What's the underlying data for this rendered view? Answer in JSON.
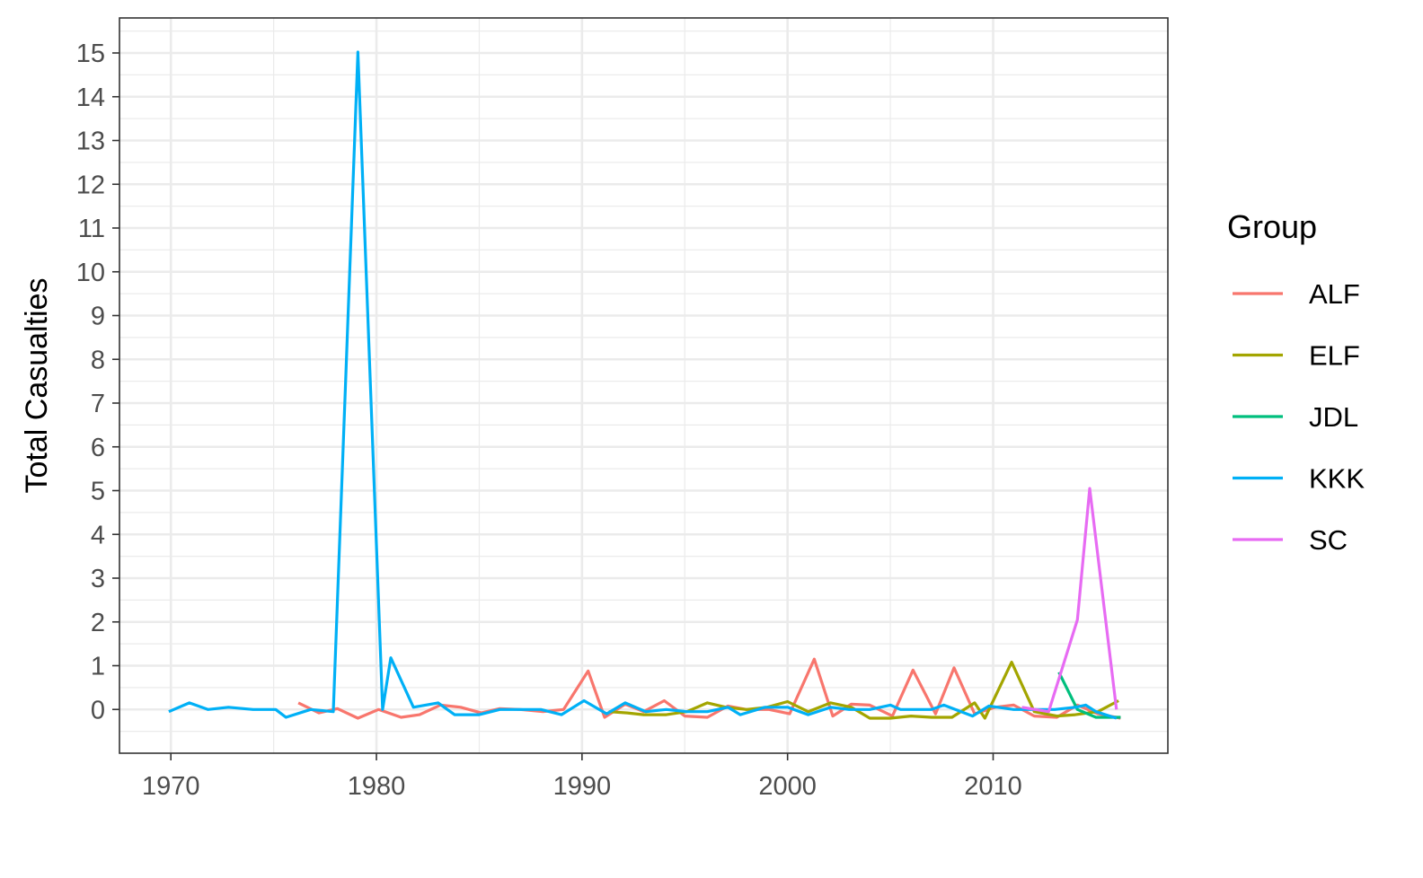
{
  "chart_data": {
    "type": "line",
    "title": "",
    "xlabel": "",
    "ylabel": "Total Casualties",
    "xlim": [
      1967.5,
      2018.5
    ],
    "ylim": [
      -1.0,
      15.8
    ],
    "x_ticks": [
      1970,
      1980,
      1990,
      2000,
      2010
    ],
    "y_ticks": [
      0,
      1,
      2,
      3,
      4,
      5,
      6,
      7,
      8,
      9,
      10,
      11,
      12,
      13,
      14,
      15
    ],
    "grid": true,
    "legend": {
      "title": "Group",
      "position": "right"
    },
    "series": [
      {
        "name": "ALF",
        "color": "#F8766D",
        "points": [
          [
            1976.2,
            0.15
          ],
          [
            1977.2,
            -0.08
          ],
          [
            1978.1,
            0.02
          ],
          [
            1979.1,
            -0.2
          ],
          [
            1980.1,
            0.0
          ],
          [
            1981.2,
            -0.18
          ],
          [
            1982.1,
            -0.12
          ],
          [
            1983.1,
            0.1
          ],
          [
            1984.1,
            0.05
          ],
          [
            1985.1,
            -0.08
          ],
          [
            1986.0,
            0.02
          ],
          [
            1987.0,
            0.0
          ],
          [
            1988.1,
            -0.05
          ],
          [
            1989.1,
            0.0
          ],
          [
            1990.3,
            0.88
          ],
          [
            1991.1,
            -0.18
          ],
          [
            1992.1,
            0.12
          ],
          [
            1993.0,
            -0.05
          ],
          [
            1994.0,
            0.2
          ],
          [
            1995.0,
            -0.15
          ],
          [
            1996.1,
            -0.18
          ],
          [
            1997.1,
            0.08
          ],
          [
            1998.0,
            0.0
          ],
          [
            1999.1,
            0.0
          ],
          [
            2000.1,
            -0.1
          ],
          [
            2001.3,
            1.15
          ],
          [
            2002.2,
            -0.15
          ],
          [
            2003.1,
            0.12
          ],
          [
            2004.0,
            0.1
          ],
          [
            2005.1,
            -0.15
          ],
          [
            2006.1,
            0.9
          ],
          [
            2007.2,
            -0.1
          ],
          [
            2008.1,
            0.95
          ],
          [
            2009.1,
            -0.1
          ],
          [
            2010.1,
            0.05
          ],
          [
            2011.0,
            0.1
          ],
          [
            2012.0,
            -0.15
          ],
          [
            2013.1,
            -0.18
          ],
          [
            2014.1,
            0.1
          ],
          [
            2015.1,
            -0.1
          ],
          [
            2016.2,
            -0.2
          ]
        ]
      },
      {
        "name": "ELF",
        "color": "#A3A500",
        "points": [
          [
            1991.3,
            -0.05
          ],
          [
            1992.2,
            -0.08
          ],
          [
            1993.0,
            -0.12
          ],
          [
            1994.1,
            -0.12
          ],
          [
            1995.1,
            -0.05
          ],
          [
            1996.1,
            0.15
          ],
          [
            1997.0,
            0.05
          ],
          [
            1998.0,
            0.0
          ],
          [
            1999.0,
            0.05
          ],
          [
            2000.0,
            0.18
          ],
          [
            2001.0,
            -0.05
          ],
          [
            2002.1,
            0.15
          ],
          [
            2003.1,
            0.05
          ],
          [
            2004.0,
            -0.2
          ],
          [
            2005.0,
            -0.2
          ],
          [
            2006.0,
            -0.15
          ],
          [
            2007.0,
            -0.18
          ],
          [
            2008.0,
            -0.18
          ],
          [
            2009.1,
            0.15
          ],
          [
            2009.6,
            -0.2
          ],
          [
            2010.9,
            1.08
          ],
          [
            2012.0,
            -0.05
          ],
          [
            2013.1,
            -0.15
          ],
          [
            2014.0,
            -0.12
          ],
          [
            2015.1,
            -0.05
          ],
          [
            2016.1,
            0.2
          ]
        ]
      },
      {
        "name": "JDL",
        "color": "#00BF7D",
        "points": [
          [
            2013.2,
            0.85
          ],
          [
            2014.1,
            0.0
          ],
          [
            2015.0,
            -0.18
          ],
          [
            2016.2,
            -0.18
          ]
        ]
      },
      {
        "name": "KKK",
        "color": "#00B0F6",
        "points": [
          [
            1969.9,
            -0.05
          ],
          [
            1970.9,
            0.15
          ],
          [
            1971.8,
            0.0
          ],
          [
            1972.8,
            0.05
          ],
          [
            1974.0,
            0.0
          ],
          [
            1974.8,
            0.0
          ],
          [
            1975.1,
            0.0
          ],
          [
            1975.6,
            -0.18
          ],
          [
            1976.8,
            0.0
          ],
          [
            1977.9,
            -0.05
          ],
          [
            1979.1,
            15.02
          ],
          [
            1980.3,
            0.0
          ],
          [
            1980.7,
            1.18
          ],
          [
            1981.8,
            0.05
          ],
          [
            1983.0,
            0.15
          ],
          [
            1983.8,
            -0.12
          ],
          [
            1985.0,
            -0.12
          ],
          [
            1986.0,
            0.0
          ],
          [
            1987.0,
            0.0
          ],
          [
            1988.0,
            0.0
          ],
          [
            1989.0,
            -0.12
          ],
          [
            1990.1,
            0.2
          ],
          [
            1991.2,
            -0.1
          ],
          [
            1992.1,
            0.15
          ],
          [
            1993.1,
            -0.05
          ],
          [
            1994.1,
            0.0
          ],
          [
            1995.1,
            -0.05
          ],
          [
            1996.1,
            -0.05
          ],
          [
            1997.1,
            0.05
          ],
          [
            1997.7,
            -0.12
          ],
          [
            1998.9,
            0.05
          ],
          [
            2000.0,
            0.05
          ],
          [
            2001.0,
            -0.12
          ],
          [
            2002.1,
            0.05
          ],
          [
            2003.0,
            0.0
          ],
          [
            2004.0,
            0.0
          ],
          [
            2005.0,
            0.1
          ],
          [
            2005.5,
            0.0
          ],
          [
            2007.0,
            0.0
          ],
          [
            2007.6,
            0.1
          ],
          [
            2009.0,
            -0.15
          ],
          [
            2009.8,
            0.08
          ],
          [
            2011.0,
            0.0
          ],
          [
            2013.0,
            0.0
          ],
          [
            2014.0,
            0.05
          ],
          [
            2014.5,
            0.1
          ],
          [
            2015.0,
            -0.05
          ],
          [
            2016.0,
            -0.2
          ]
        ]
      },
      {
        "name": "SC",
        "color": "#E76BF3",
        "points": [
          [
            2011.4,
            0.05
          ],
          [
            2012.7,
            -0.05
          ],
          [
            2014.1,
            2.05
          ],
          [
            2014.7,
            5.05
          ],
          [
            2016.0,
            0.0
          ]
        ]
      }
    ]
  }
}
